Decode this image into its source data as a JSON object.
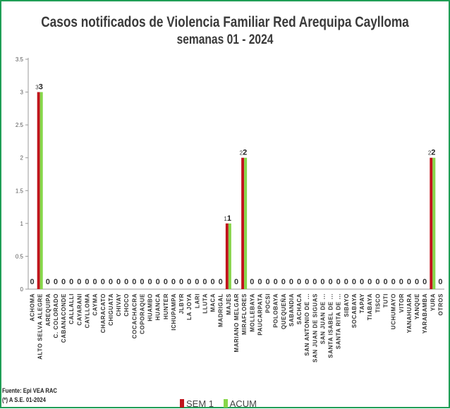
{
  "chart_data": {
    "type": "bar",
    "title": "Casos notificados  de Violencia Familiar Red Arequipa Caylloma",
    "subtitle": "semanas 01 - 2024",
    "ylim": [
      0,
      3.5
    ],
    "yticks": [
      "0",
      "0.5",
      "1",
      "1.5",
      "2",
      "2.5",
      "3",
      "3.5"
    ],
    "grid": false,
    "legend_position": "bottom",
    "categories": [
      "ACHOMA",
      "ALTO SELVA ALEGRE",
      "AREQUIPA",
      "C. COLORADO",
      "CABANACONDE",
      "CALLALLI",
      "CAYARANI",
      "CAYLLOMA",
      "CAYMA",
      "CHARACATO",
      "CHIGUATA",
      "CHIVAY",
      "CHOCO",
      "COCACHACRA",
      "COPORAQUE",
      "HUAMBO",
      "HUANCA",
      "HUNTER",
      "ICHUPAMPA",
      "JLBYR",
      "LA JOYA",
      "LARI",
      "LLUTA",
      "MACA",
      "MADRIGAL",
      "MAJES",
      "MARIANO MELGAR",
      "MIRAFLORES",
      "MOLLEBAYA",
      "PAUCARPATA",
      "POCSI",
      "POLOBAYA",
      "QUEQUEÑA",
      "SABANDIA",
      "SACHACA",
      "SAN ANTONIO DE ...",
      "SAN JUAN DE SIGUAS",
      "SAN JUAN DE ...",
      "SANTA ISABEL DE ...",
      "SANTA RITA DE ...",
      "SIBAYO",
      "SOCABAYA",
      "TAPAY",
      "TIABAYA",
      "TISCO",
      "TUTI",
      "UCHUMAYO",
      "VITOR",
      "YANAHUARA",
      "YANQUE",
      "YARABAMBA",
      "YURA",
      "OTROS"
    ],
    "series": [
      {
        "name": "SEM 1",
        "color": "#c0141c",
        "values": [
          0,
          3,
          0,
          0,
          0,
          0,
          0,
          0,
          0,
          0,
          0,
          0,
          0,
          0,
          0,
          0,
          0,
          0,
          0,
          0,
          0,
          0,
          0,
          0,
          0,
          1,
          0,
          2,
          0,
          0,
          0,
          0,
          0,
          0,
          0,
          0,
          0,
          0,
          0,
          0,
          0,
          0,
          0,
          0,
          0,
          0,
          0,
          0,
          0,
          0,
          0,
          2,
          0
        ]
      },
      {
        "name": "ACUM",
        "color": "#86d74a",
        "values": [
          0,
          3,
          0,
          0,
          0,
          0,
          0,
          0,
          0,
          0,
          0,
          0,
          0,
          0,
          0,
          0,
          0,
          0,
          0,
          0,
          0,
          0,
          0,
          0,
          0,
          1,
          0,
          2,
          0,
          0,
          0,
          0,
          0,
          0,
          0,
          0,
          0,
          0,
          0,
          0,
          0,
          0,
          0,
          0,
          0,
          0,
          0,
          0,
          0,
          0,
          0,
          2,
          0
        ]
      }
    ]
  },
  "source": {
    "line1": "Fuente: Epi VEA RAC",
    "line2": "(*) A S.E. 01-2024"
  }
}
